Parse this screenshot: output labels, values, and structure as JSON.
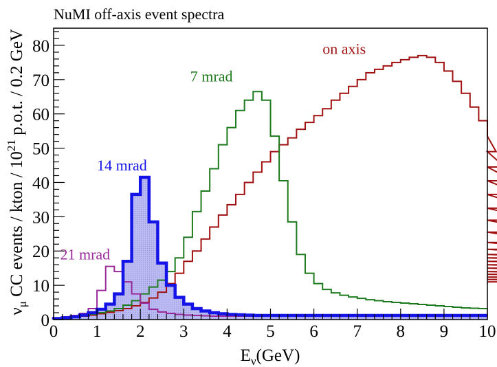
{
  "chart_data": {
    "type": "histogram",
    "title": "NuMI off-axis event spectra",
    "xlabel": "E",
    "xlabel_sub": "ν",
    "xlabel_unit": "(GeV)",
    "ylabel": {
      "nu": "ν",
      "mu": "μ",
      "mid": " CC events / kton / 10",
      "sup": "21",
      "tail": " p.o.t. / 0.2 GeV"
    },
    "xlim": [
      0,
      10
    ],
    "ylim": [
      0,
      85
    ],
    "xticks": [
      "0",
      "1",
      "2",
      "3",
      "4",
      "5",
      "6",
      "7",
      "8",
      "9",
      "10"
    ],
    "yticks": [
      "0",
      "10",
      "20",
      "30",
      "40",
      "50",
      "60",
      "70",
      "80"
    ],
    "bin_width": 0.2,
    "series": [
      {
        "name": "on axis",
        "color": "#a01010",
        "values": [
          0.3,
          0.5,
          0.7,
          1.0,
          1.3,
          1.7,
          2.1,
          2.6,
          3.2,
          4.0,
          5.0,
          6.3,
          8.0,
          10.5,
          13.5,
          17.0,
          20.0,
          23.5,
          27.0,
          30.5,
          33.5,
          36.5,
          40.0,
          43.0,
          46.0,
          49.0,
          51.0,
          53.0,
          55.5,
          57.5,
          59.5,
          61.5,
          64.0,
          66.0,
          68.0,
          70.0,
          72.0,
          73.0,
          74.0,
          75.0,
          75.8,
          76.5,
          77.0,
          76.5,
          75.0,
          72.5,
          69.5,
          66.0,
          62.0,
          58.0,
          53.5,
          49.0,
          44.5,
          40.5,
          36.5,
          32.5,
          29.0,
          25.5,
          22.5,
          20.5,
          19.0,
          18.0,
          17.0,
          16.0,
          15.0,
          14.0,
          13.2,
          12.4,
          11.7,
          11.0
        ]
      },
      {
        "name": "7 mrad",
        "color": "#1e7a1e",
        "values": [
          0.5,
          0.7,
          1.0,
          1.3,
          1.6,
          2.0,
          2.5,
          3.2,
          4.2,
          5.5,
          7.5,
          9.5,
          11.5,
          14.0,
          18.0,
          24.0,
          31.5,
          37.5,
          44.0,
          51.0,
          56.0,
          61.0,
          64.0,
          66.5,
          64.0,
          53.5,
          40.5,
          28.5,
          19.0,
          13.5,
          10.5,
          8.8,
          7.8,
          7.1,
          6.6,
          6.2,
          5.8,
          5.5,
          5.2,
          5.0,
          4.8,
          4.6,
          4.4,
          4.2,
          4.0,
          3.8,
          3.6,
          3.4,
          3.3,
          3.2
        ]
      },
      {
        "name": "21 mrad",
        "color": "#9a2a9a",
        "values": [
          0.5,
          0.8,
          1.2,
          1.8,
          3.2,
          8.5,
          15.5,
          14.0,
          11.0,
          7.5,
          4.8,
          3.0,
          2.2,
          1.8,
          1.5,
          1.3,
          1.2,
          1.1,
          1.0,
          1.0,
          1.0,
          1.0,
          1.0,
          1.0,
          1.0,
          1.0,
          1.0,
          1.0,
          1.0,
          1.0,
          1.0,
          1.0,
          1.0,
          1.0,
          1.0,
          1.0,
          1.0,
          1.0,
          1.0,
          1.0,
          1.0,
          1.0,
          1.0,
          1.0,
          1.0,
          1.0,
          1.0,
          1.0,
          1.0,
          1.0
        ]
      },
      {
        "name": "14 mrad",
        "color": "#1414e6",
        "fill": "#b4b4f0",
        "values": [
          0.3,
          0.5,
          0.8,
          1.3,
          2.0,
          3.0,
          4.5,
          7.5,
          17.0,
          36.5,
          41.5,
          28.5,
          16.5,
          10.0,
          6.5,
          4.5,
          3.2,
          2.5,
          2.0,
          1.7,
          1.5,
          1.4,
          1.3,
          1.2,
          1.2,
          1.2,
          1.2,
          1.2,
          1.2,
          1.2,
          1.2,
          1.2,
          1.2,
          1.2,
          1.2,
          1.2,
          1.2,
          1.2,
          1.2,
          1.2,
          1.2,
          1.2,
          1.2,
          1.2,
          1.2,
          1.2,
          1.2,
          1.2,
          1.2,
          1.2
        ]
      }
    ],
    "annotations": [
      {
        "text": "on axis",
        "x": 6.2,
        "y": 77.5,
        "color": "#a01010"
      },
      {
        "text": "7 mrad",
        "x": 3.15,
        "y": 69.5,
        "color": "#1e7a1e"
      },
      {
        "text": "14 mrad",
        "x": 1.0,
        "y": 43.5,
        "color": "#1414e6"
      },
      {
        "text": "21 mrad",
        "x": 0.15,
        "y": 17.5,
        "color": "#9a2a9a"
      }
    ]
  }
}
